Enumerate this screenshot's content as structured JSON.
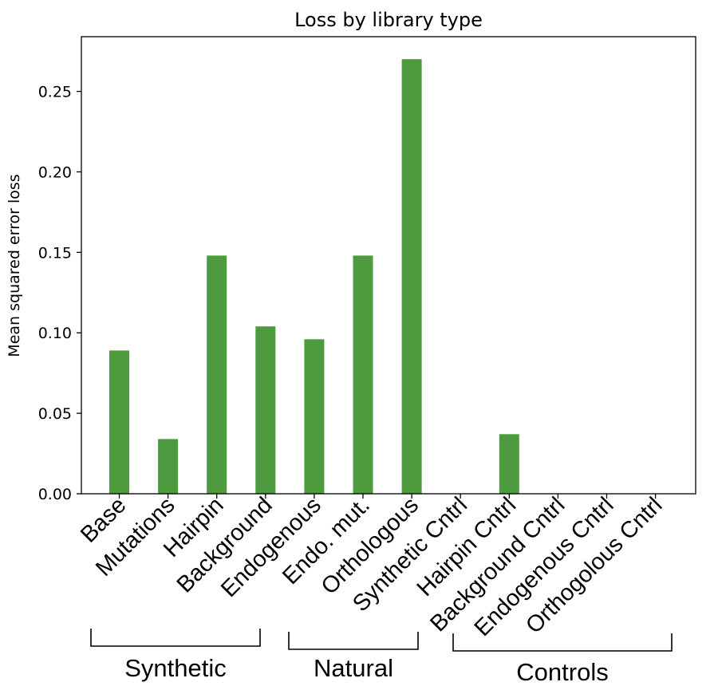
{
  "chart_data": {
    "type": "bar",
    "title": "Loss by library type",
    "ylabel": "Mean squared error loss",
    "xlabel": "",
    "ylim": [
      0,
      0.284
    ],
    "yticks": [
      "0.00",
      "0.05",
      "0.10",
      "0.15",
      "0.20",
      "0.25"
    ],
    "categories": [
      "Base",
      "Mutations",
      "Hairpin",
      "Background",
      "Endogenous",
      "Endo. mut.",
      "Orthologous",
      "Synthetic Cntrl",
      "Hairpin Cntrl",
      "Background Cntrl",
      "Endogenous Cntrl",
      "Orthogolous Cntrl"
    ],
    "values": [
      0.089,
      0.034,
      0.148,
      0.104,
      0.096,
      0.148,
      0.27,
      0,
      0.037,
      0,
      0,
      0
    ],
    "bar_color": "#4e9a3f",
    "grid": false,
    "groups": [
      {
        "label": "Synthetic",
        "first": 0,
        "last": 3
      },
      {
        "label": "Natural",
        "first": 4,
        "last": 6
      },
      {
        "label": "Controls",
        "first": 7,
        "last": 11
      }
    ]
  }
}
